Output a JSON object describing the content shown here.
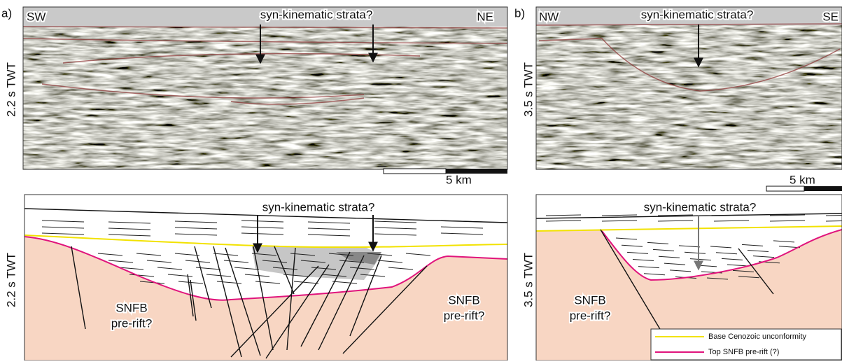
{
  "panels": [
    {
      "label": "a)",
      "seismic": {
        "left": "SW",
        "right": "NE",
        "annotation": "syn-kinematic strata?",
        "axis_label": "2.2 s TWT"
      },
      "scale_bar": "5 km",
      "interpretation": {
        "annotation": "syn-kinematic strata?",
        "axis_label": "2.2 s TWT",
        "left_unit": [
          "SNFB",
          "pre-rift?"
        ],
        "right_unit": [
          "SNFB",
          "pre-rift?"
        ]
      }
    },
    {
      "label": "b)",
      "seismic": {
        "left": "NW",
        "right": "SE",
        "annotation": "syn-kinematic strata?",
        "axis_label": "3.5 s TWT"
      },
      "scale_bar": "5 km",
      "interpretation": {
        "annotation": "syn-kinematic strata?",
        "axis_label": "3.5 s TWT",
        "left_unit": [
          "SNFB",
          "pre-rift?"
        ]
      }
    }
  ],
  "legend": {
    "items": [
      {
        "label": "Base Cenozoic unconformity",
        "color": "#f2e200"
      },
      {
        "label": "Top SNFB pre-rift (?)",
        "color": "#e0147c"
      }
    ]
  }
}
